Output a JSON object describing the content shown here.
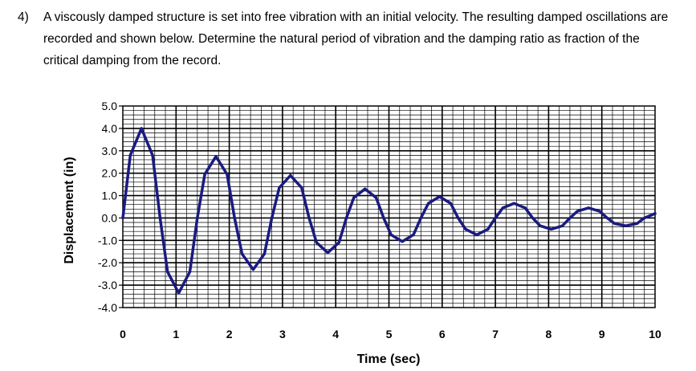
{
  "question": {
    "number": "4)",
    "text": "A viscously damped structure is set into free vibration with an initial velocity. The resulting damped oscillations are recorded and shown below. Determine the natural period of vibration and the damping ratio as fraction of the critical damping from the record."
  },
  "chart_data": {
    "type": "line",
    "xlabel": "Time (sec)",
    "ylabel": "Displacement (in)",
    "xlim": [
      0,
      10
    ],
    "ylim": [
      -4.0,
      5.0
    ],
    "x_ticks": [
      "0",
      "1",
      "2",
      "3",
      "4",
      "5",
      "6",
      "7",
      "8",
      "9",
      "10"
    ],
    "y_ticks": [
      "5.0",
      "4.0",
      "3.0",
      "2.0",
      "1.0",
      "0.0",
      "-1.0",
      "-2.0",
      "-3.0",
      "-4.0"
    ],
    "grid": true,
    "line_color": "#1a1a80",
    "series": [
      {
        "x": [
          0,
          0.14,
          0.35,
          0.56,
          0.7,
          0.84,
          1.05,
          1.26,
          1.4,
          1.54,
          1.75,
          1.96,
          2.1,
          2.24,
          2.45,
          2.66,
          2.8,
          2.94,
          3.15,
          3.36,
          3.5,
          3.64,
          3.85,
          4.06,
          4.2,
          4.34,
          4.55,
          4.76,
          4.9,
          5.04,
          5.25,
          5.46,
          5.6,
          5.74,
          5.95,
          6.16,
          6.3,
          6.44,
          6.65,
          6.86,
          7.0,
          7.14,
          7.35,
          7.56,
          7.7,
          7.84,
          8.05,
          8.26,
          8.4,
          8.54,
          8.75,
          8.96,
          9.1,
          9.24,
          9.45,
          9.66,
          9.8,
          9.9,
          10.0
        ],
        "y": [
          0.0,
          2.8,
          4.0,
          2.8,
          0.0,
          -2.4,
          -3.35,
          -2.4,
          0.0,
          1.95,
          2.75,
          1.95,
          0.0,
          -1.6,
          -2.3,
          -1.6,
          0.0,
          1.35,
          1.9,
          1.35,
          0.0,
          -1.1,
          -1.55,
          -1.1,
          0.0,
          0.9,
          1.3,
          0.9,
          0.0,
          -0.75,
          -1.05,
          -0.75,
          0.0,
          0.65,
          0.95,
          0.65,
          0.0,
          -0.5,
          -0.75,
          -0.5,
          0.0,
          0.45,
          0.65,
          0.45,
          0.0,
          -0.35,
          -0.5,
          -0.35,
          0.0,
          0.3,
          0.45,
          0.3,
          0.0,
          -0.25,
          -0.35,
          -0.25,
          0.0,
          0.1,
          0.2
        ]
      }
    ]
  }
}
